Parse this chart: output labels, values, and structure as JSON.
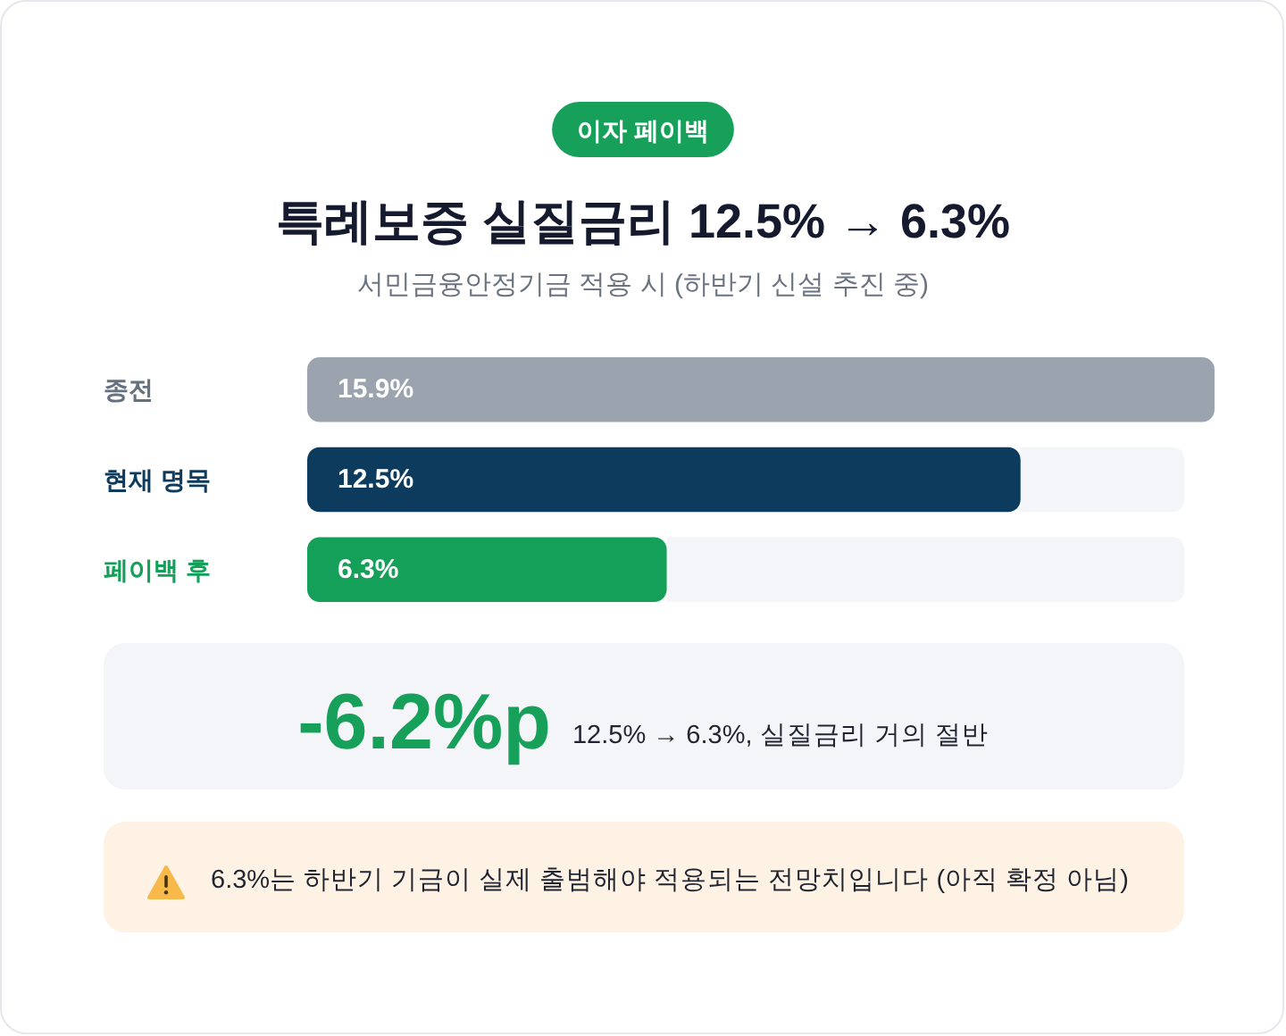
{
  "chart_data": {
    "type": "bar",
    "orientation": "horizontal",
    "title": "특례보증 실질금리 12.5% → 6.3%",
    "subtitle": "서민금융안정기금 적용 시 (하반기 신설 추진 중)",
    "categories": [
      "종전",
      "현재 명목",
      "페이백 후"
    ],
    "values": [
      15.9,
      12.5,
      6.3
    ],
    "value_labels": [
      "15.9%",
      "12.5%",
      "6.3%"
    ],
    "colors": [
      "#9aa3ae",
      "#0d3b5e",
      "#15a05a"
    ],
    "annotations": [
      "이자 페이백",
      "-6.2%p",
      "12.5% → 6.3%, 실질금리 거의 절반",
      "6.3%는 하반기 기금이 실제 출범해야 적용되는 전망치입니다 (아직 확정 아님)"
    ]
  }
}
